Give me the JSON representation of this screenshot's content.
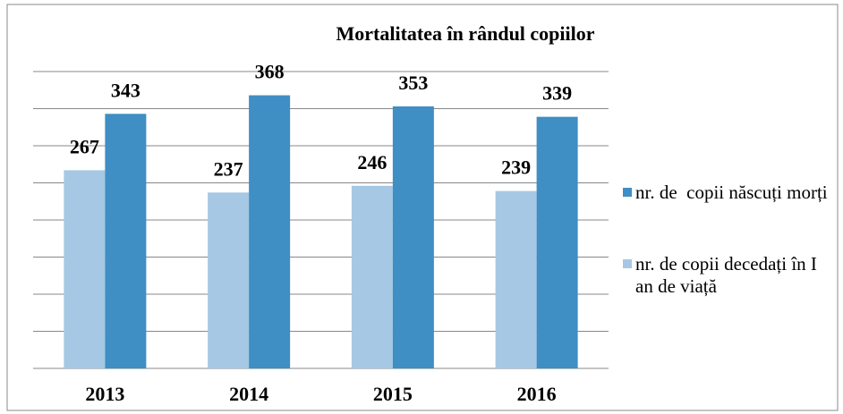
{
  "chart_data": {
    "type": "bar",
    "title": "Mortalitatea în rândul copiilor",
    "categories": [
      "2013",
      "2014",
      "2015",
      "2016"
    ],
    "series": [
      {
        "name": "nr. de copii decedați în I an de viață",
        "color": "#a6c8e4",
        "values": [
          267,
          237,
          246,
          239
        ]
      },
      {
        "name": "nr. de  copii născuți morți",
        "color": "#3f8ec4",
        "values": [
          343,
          368,
          353,
          339
        ]
      }
    ],
    "ylim": [
      0,
      400
    ],
    "yticks": [
      0,
      50,
      100,
      150,
      200,
      250,
      300,
      350,
      400
    ],
    "grid": true,
    "legend": "right"
  }
}
